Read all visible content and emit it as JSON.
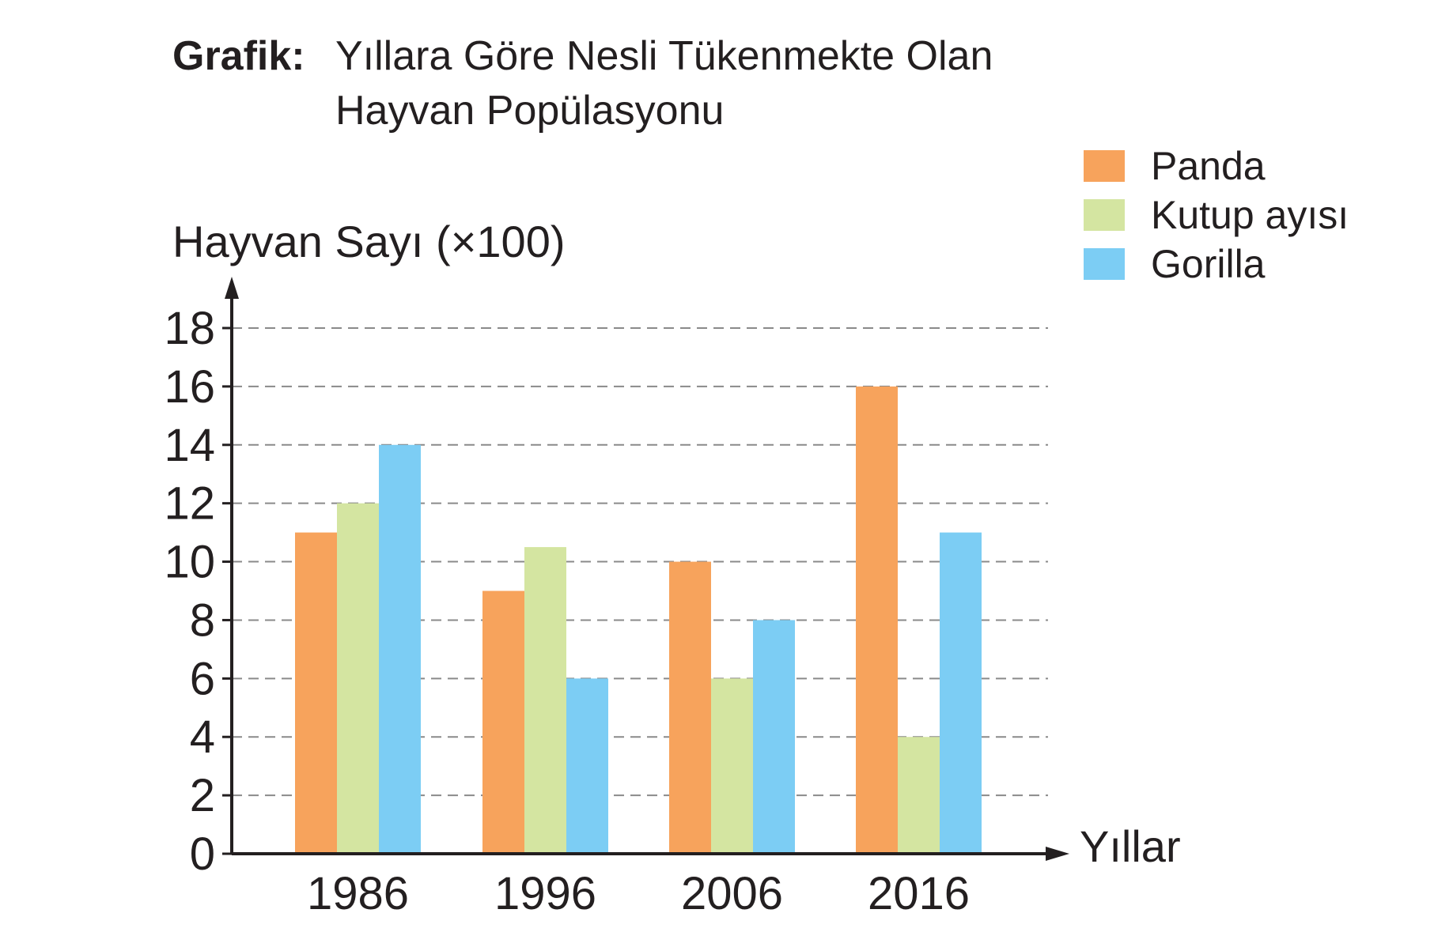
{
  "title": {
    "prefix": "Grafik:",
    "line1": "Yıllara Göre Nesli Tükenmekte Olan",
    "line2": "Hayvan Popülasyonu"
  },
  "chart_data": {
    "type": "bar",
    "title": "Grafik: Yıllara Göre Nesli Tükenmekte Olan Hayvan Popülasyonu",
    "xlabel": "Yıllar",
    "ylabel": "Hayvan Sayı (×100)",
    "categories": [
      "1986",
      "1996",
      "2006",
      "2016"
    ],
    "yticks": [
      0,
      2,
      4,
      6,
      8,
      10,
      12,
      14,
      16,
      18
    ],
    "ylim": [
      0,
      18
    ],
    "grid": true,
    "legend_position": "top-right",
    "series": [
      {
        "name": "Panda",
        "color": "#f7a35c",
        "values": [
          11,
          9,
          10,
          16
        ]
      },
      {
        "name": "Kutup ayısı",
        "color": "#d4e5a1",
        "values": [
          12,
          10.5,
          6,
          4
        ]
      },
      {
        "name": "Gorilla",
        "color": "#7ccdf4",
        "values": [
          14,
          6,
          8,
          11
        ]
      }
    ]
  }
}
